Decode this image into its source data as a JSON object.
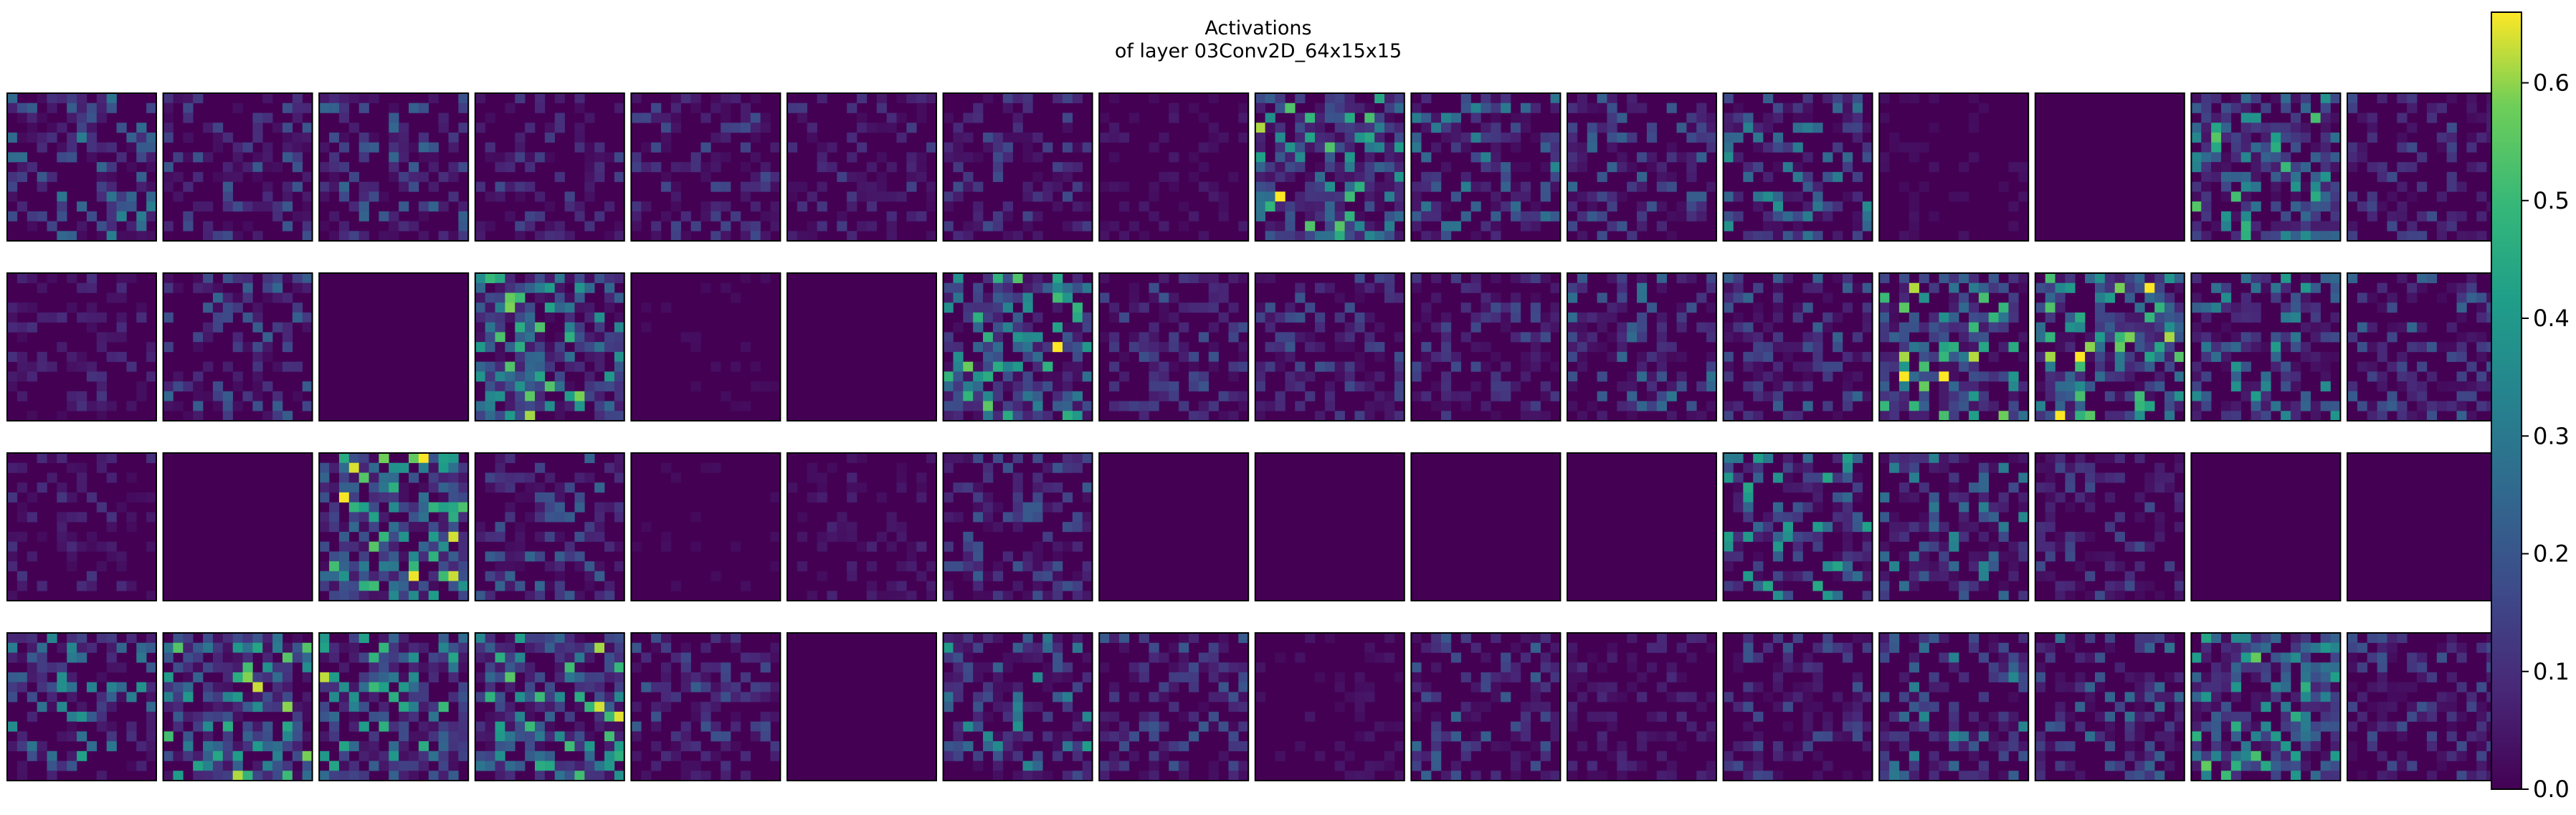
{
  "chart_data": {
    "type": "heatmap",
    "title": "Activations",
    "subtitle": "of layer 03Conv2D_64x15x15",
    "grid": {
      "rows": 4,
      "cols": 16,
      "map_size": 15
    },
    "colormap": "viridis",
    "colorbar": {
      "min": 0.0,
      "max": 0.66,
      "ticks": [
        0.0,
        0.1,
        0.2,
        0.3,
        0.4,
        0.5,
        0.6
      ],
      "tick_labels": [
        "0.0",
        "0.1",
        "0.2",
        "0.3",
        "0.4",
        "0.5",
        "0.6"
      ],
      "position": "right"
    },
    "panel_seeds": [
      1,
      2,
      3,
      4,
      5,
      6,
      7,
      8,
      9,
      10,
      11,
      12,
      13,
      14,
      15,
      16,
      17,
      18,
      19,
      20,
      21,
      22,
      23,
      24,
      25,
      26,
      27,
      28,
      29,
      30,
      31,
      32,
      33,
      34,
      35,
      36,
      37,
      38,
      39,
      40,
      41,
      42,
      43,
      44,
      45,
      46,
      47,
      48,
      49,
      50,
      51,
      52,
      53,
      54,
      55,
      56,
      57,
      58,
      59,
      60,
      61,
      62,
      63,
      64
    ],
    "panel_intensity": [
      0.35,
      0.22,
      0.25,
      0.18,
      0.18,
      0.15,
      0.18,
      0.06,
      0.55,
      0.35,
      0.25,
      0.38,
      0.04,
      0.02,
      0.48,
      0.18,
      0.12,
      0.25,
      0.0,
      0.55,
      0.03,
      0.0,
      0.55,
      0.2,
      0.2,
      0.18,
      0.3,
      0.25,
      0.6,
      0.62,
      0.45,
      0.25,
      0.12,
      0.02,
      0.58,
      0.25,
      0.03,
      0.08,
      0.22,
      0.02,
      0.0,
      0.0,
      0.02,
      0.45,
      0.35,
      0.18,
      0.02,
      0.02,
      0.45,
      0.55,
      0.5,
      0.52,
      0.22,
      0.0,
      0.42,
      0.22,
      0.05,
      0.25,
      0.1,
      0.2,
      0.35,
      0.28,
      0.48,
      0.2
    ]
  }
}
